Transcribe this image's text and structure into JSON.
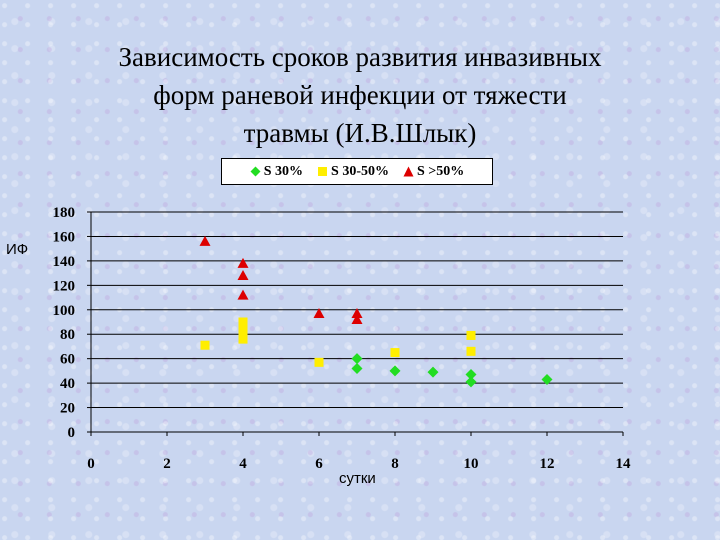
{
  "slide": {
    "title_lines": [
      "Зависимость сроков развития инвазивных",
      "форм раневой инфекции  от тяжести",
      "травмы (И.В.Шлык)"
    ]
  },
  "chart_data": {
    "type": "scatter",
    "xlabel": "сутки",
    "ylabel": "ИФ",
    "xlim": [
      0,
      14
    ],
    "ylim": [
      0,
      180
    ],
    "x_ticks": [
      0,
      2,
      4,
      6,
      8,
      10,
      12,
      14
    ],
    "y_ticks": [
      0,
      20,
      40,
      60,
      80,
      100,
      120,
      140,
      160,
      180
    ],
    "grid": "horizontal",
    "legend_position": "top",
    "series": [
      {
        "name": "S 30%",
        "marker": "diamond",
        "color": "#22dd22",
        "points": [
          [
            7,
            60
          ],
          [
            7,
            52
          ],
          [
            8,
            50
          ],
          [
            9,
            49
          ],
          [
            10,
            47
          ],
          [
            10,
            41
          ],
          [
            12,
            43
          ]
        ]
      },
      {
        "name": "S 30-50%",
        "marker": "square",
        "color": "#ffee00",
        "points": [
          [
            3,
            71
          ],
          [
            4,
            90
          ],
          [
            4,
            83
          ],
          [
            4,
            76
          ],
          [
            6,
            57
          ],
          [
            8,
            65
          ],
          [
            10,
            79
          ],
          [
            10,
            66
          ]
        ]
      },
      {
        "name": "S >50%",
        "marker": "triangle",
        "color": "#dd0000",
        "points": [
          [
            3,
            156
          ],
          [
            4,
            138
          ],
          [
            4,
            128
          ],
          [
            4,
            112
          ],
          [
            6,
            97
          ],
          [
            7,
            97
          ],
          [
            7,
            92
          ]
        ]
      }
    ]
  }
}
